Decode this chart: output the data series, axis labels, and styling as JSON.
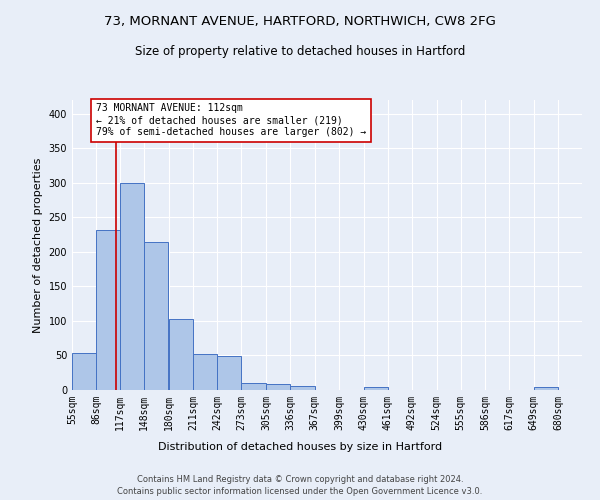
{
  "title_line1": "73, MORNANT AVENUE, HARTFORD, NORTHWICH, CW8 2FG",
  "title_line2": "Size of property relative to detached houses in Hartford",
  "xlabel": "Distribution of detached houses by size in Hartford",
  "ylabel": "Number of detached properties",
  "footer_line1": "Contains HM Land Registry data © Crown copyright and database right 2024.",
  "footer_line2": "Contains public sector information licensed under the Open Government Licence v3.0.",
  "bin_labels": [
    "55sqm",
    "86sqm",
    "117sqm",
    "148sqm",
    "180sqm",
    "211sqm",
    "242sqm",
    "273sqm",
    "305sqm",
    "336sqm",
    "367sqm",
    "399sqm",
    "430sqm",
    "461sqm",
    "492sqm",
    "524sqm",
    "555sqm",
    "586sqm",
    "617sqm",
    "649sqm",
    "680sqm"
  ],
  "bin_edges": [
    55,
    86,
    117,
    148,
    180,
    211,
    242,
    273,
    305,
    336,
    367,
    399,
    430,
    461,
    492,
    524,
    555,
    586,
    617,
    649,
    680
  ],
  "bar_values": [
    53,
    232,
    300,
    215,
    103,
    52,
    49,
    10,
    9,
    6,
    0,
    0,
    5,
    0,
    0,
    0,
    0,
    0,
    0,
    4,
    0
  ],
  "bar_color": "#aec6e8",
  "bar_edge_color": "#4472c4",
  "property_size": 112,
  "property_label": "73 MORNANT AVENUE: 112sqm",
  "annotation_line1": "← 21% of detached houses are smaller (219)",
  "annotation_line2": "79% of semi-detached houses are larger (802) →",
  "vline_color": "#cc0000",
  "annotation_box_color": "#ffffff",
  "annotation_box_edge": "#cc0000",
  "ylim": [
    0,
    420
  ],
  "yticks": [
    0,
    50,
    100,
    150,
    200,
    250,
    300,
    350,
    400
  ],
  "background_color": "#e8eef8",
  "plot_bg_color": "#e8eef8",
  "grid_color": "#ffffff",
  "title_fontsize": 9.5,
  "subtitle_fontsize": 8.5,
  "axis_label_fontsize": 8,
  "tick_fontsize": 7,
  "footer_fontsize": 6
}
